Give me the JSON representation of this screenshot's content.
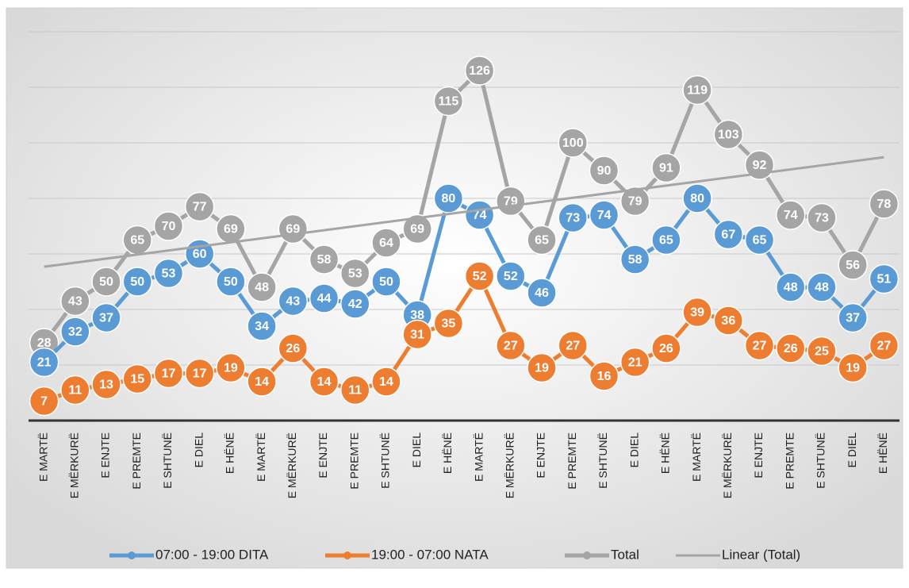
{
  "chart_data": {
    "type": "line",
    "categories": [
      "E MARTË",
      "E MËRKURË",
      "E ENJTE",
      "E PREMTE",
      "E SHTUNË",
      "E DIEL",
      "E HËNË",
      "E MARTË",
      "E MËRKURË",
      "E ENJTE",
      "E PREMTE",
      "E SHTUNË",
      "E DIEL",
      "E HËNË",
      "E MARTË",
      "E MËRKURË",
      "E ENJTE",
      "E PREMTE",
      "E SHTUNË",
      "E DIEL",
      "E HËNË",
      "E MARTË",
      "E MËRKURË",
      "E ENJTE",
      "E PREMTE",
      "E SHTUNË",
      "E DIEL",
      "E HËNË"
    ],
    "series": [
      {
        "name": "07:00 - 19:00 DITA",
        "color": "#5b9bd5",
        "values": [
          21,
          32,
          37,
          50,
          53,
          60,
          50,
          34,
          43,
          44,
          42,
          50,
          38,
          80,
          74,
          52,
          46,
          73,
          74,
          58,
          65,
          80,
          67,
          65,
          48,
          48,
          37,
          51
        ]
      },
      {
        "name": "19:00 - 07:00 NATA",
        "color": "#ed7d31",
        "values": [
          7,
          11,
          13,
          15,
          17,
          17,
          19,
          14,
          26,
          14,
          11,
          14,
          31,
          35,
          52,
          27,
          19,
          27,
          16,
          21,
          26,
          39,
          36,
          27,
          26,
          25,
          19,
          27
        ]
      },
      {
        "name": "Total",
        "color": "#a5a5a5",
        "values": [
          28,
          43,
          50,
          65,
          70,
          77,
          69,
          48,
          69,
          58,
          53,
          64,
          69,
          115,
          126,
          79,
          65,
          100,
          90,
          79,
          91,
          119,
          103,
          92,
          74,
          73,
          56,
          78
        ]
      }
    ],
    "trendline": {
      "name": "Linear (Total)",
      "color": "#a5a5a5"
    },
    "ylim": [
      0,
      140
    ],
    "yticks": [
      0,
      20,
      40,
      60,
      80,
      100,
      120,
      140
    ],
    "grid": true
  }
}
